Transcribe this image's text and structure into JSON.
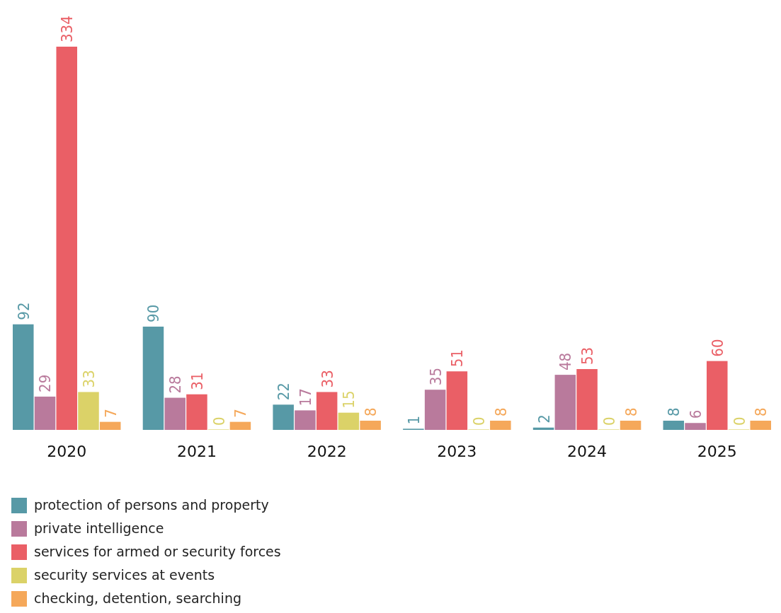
{
  "chart_data": {
    "type": "bar",
    "categories": [
      "2020",
      "2021",
      "2022",
      "2023",
      "2024",
      "2025"
    ],
    "series": [
      {
        "name": "protection of persons and property",
        "color": "#5799a6",
        "values": [
          92,
          90,
          22,
          1,
          2,
          8
        ]
      },
      {
        "name": "private intelligence",
        "color": "#b97a9c",
        "values": [
          29,
          28,
          17,
          35,
          48,
          6
        ]
      },
      {
        "name": "services for armed or security forces",
        "color": "#ea5f66",
        "values": [
          334,
          31,
          33,
          51,
          53,
          60
        ]
      },
      {
        "name": "security services at events",
        "color": "#dbd268",
        "values": [
          33,
          0,
          15,
          0,
          0,
          0
        ]
      },
      {
        "name": "checking, detention, searching",
        "color": "#f5a85a",
        "values": [
          7,
          7,
          8,
          8,
          8,
          8
        ]
      }
    ],
    "data_labels": true,
    "legend": "bottom left"
  }
}
